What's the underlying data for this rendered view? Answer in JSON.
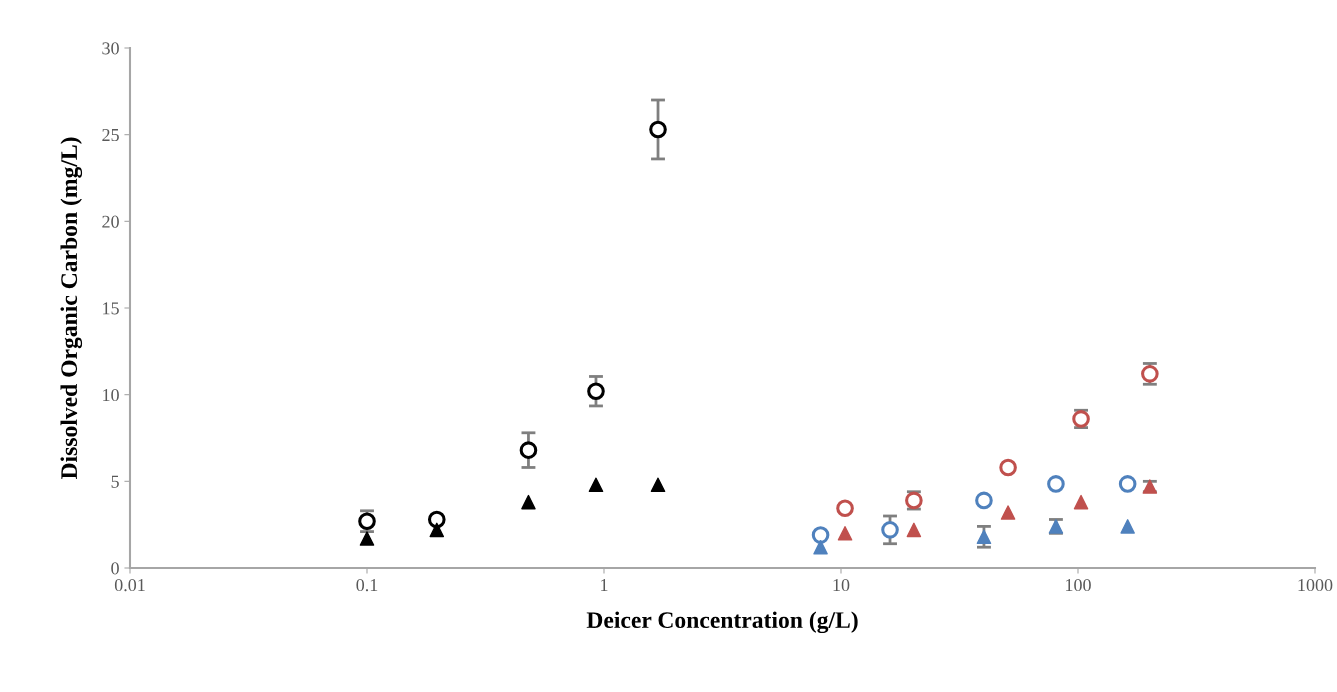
{
  "chart_data": {
    "type": "scatter",
    "xlabel": "Deicer Concentration (g/L)",
    "ylabel": "Dissolved Organic Carbon (mg/L)",
    "log": "x",
    "xlim": [
      0.01,
      1000
    ],
    "xticks": [
      0.01,
      0.1,
      1,
      10,
      100,
      1000
    ],
    "ylim": [
      0,
      30
    ],
    "yticks": [
      0,
      5,
      10,
      15,
      20,
      25,
      30
    ],
    "grid": false,
    "legend": false,
    "series": [
      {
        "color": "#000000",
        "marker": "circle",
        "x": [
          0.1,
          0.197,
          0.48,
          0.925,
          1.69
        ],
        "values": [
          2.7,
          2.8,
          6.8,
          10.2,
          25.3
        ],
        "errors": [
          0.6,
          null,
          1.0,
          0.85,
          1.7
        ]
      },
      {
        "color": "#000000",
        "marker": "triangle",
        "x": [
          0.1,
          0.197,
          0.48,
          0.925,
          1.69
        ],
        "values": [
          1.7,
          2.2,
          3.8,
          4.8,
          4.8
        ]
      },
      {
        "color": "#4f81bd",
        "marker": "circle",
        "x": [
          8.2,
          16.1,
          40.1,
          80.7,
          162
        ],
        "values": [
          1.9,
          2.2,
          3.9,
          4.85,
          4.85
        ],
        "errors": [
          null,
          0.8,
          null,
          null,
          null
        ]
      },
      {
        "color": "#4f81bd",
        "marker": "triangle",
        "x": [
          8.2,
          40.1,
          80.7,
          162
        ],
        "values": [
          1.2,
          1.8,
          2.4,
          2.4
        ],
        "errors": [
          null,
          0.6,
          0.4,
          null
        ]
      },
      {
        "color": "#c0504d",
        "marker": "circle",
        "x": [
          10.4,
          20.3,
          50.7,
          103,
          201
        ],
        "values": [
          3.45,
          3.9,
          5.8,
          8.6,
          11.2
        ],
        "errors": [
          null,
          0.5,
          null,
          0.5,
          0.6
        ]
      },
      {
        "color": "#c0504d",
        "marker": "triangle",
        "x": [
          10.4,
          20.3,
          50.7,
          103,
          201
        ],
        "values": [
          2.0,
          2.2,
          3.2,
          3.8,
          4.7
        ],
        "errors": [
          null,
          null,
          null,
          null,
          0.3
        ]
      }
    ]
  }
}
